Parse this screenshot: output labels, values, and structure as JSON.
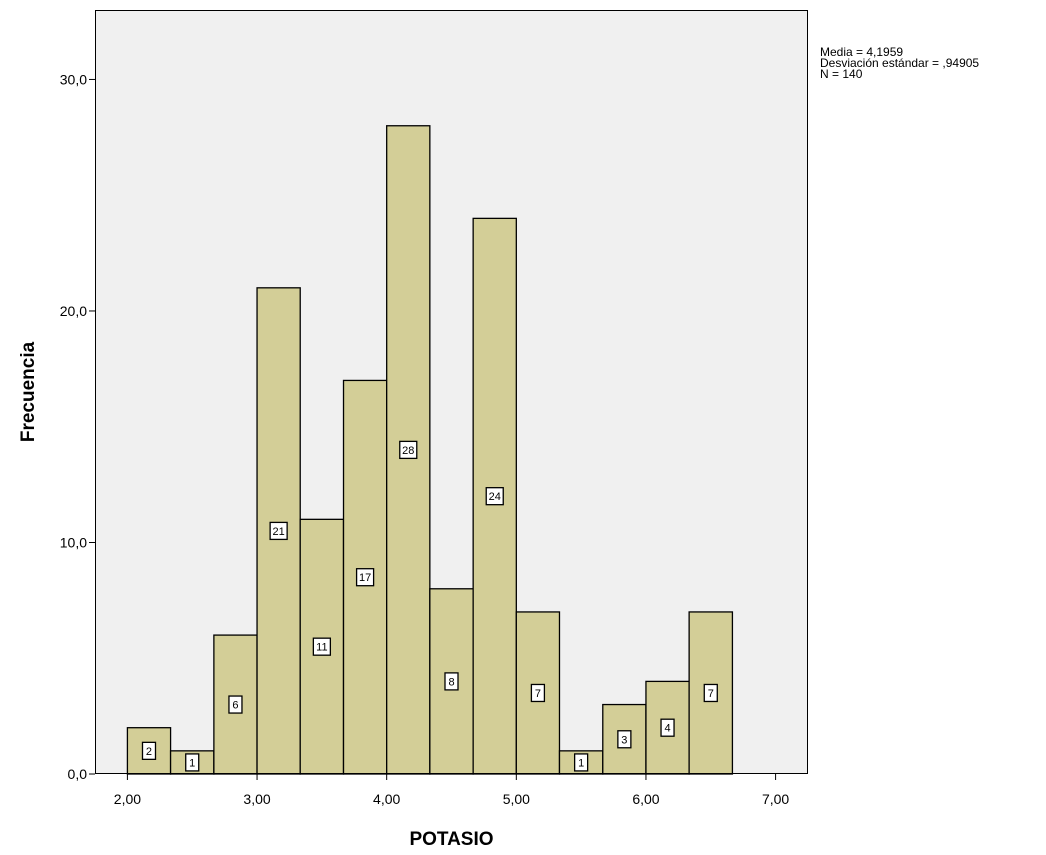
{
  "chart_data": {
    "type": "bar",
    "title": "",
    "xlabel": "POTASIO",
    "ylabel": "Frecuencia",
    "xlim": [
      1.75,
      7.25
    ],
    "ylim": [
      0,
      33
    ],
    "x_ticks": [
      2,
      3,
      4,
      5,
      6,
      7
    ],
    "x_tick_labels": [
      "2,00",
      "3,00",
      "4,00",
      "5,00",
      "6,00",
      "7,00"
    ],
    "y_ticks": [
      0,
      10,
      20,
      30
    ],
    "y_tick_labels": [
      "0,0",
      "10,0",
      "20,0",
      "30,0"
    ],
    "bin_edges": [
      2.0,
      2.333,
      2.667,
      3.0,
      3.333,
      3.667,
      4.0,
      4.333,
      4.667,
      5.0,
      5.333,
      5.667,
      6.0,
      6.333,
      6.667
    ],
    "bins": [
      {
        "start": 2.0,
        "end": 2.333,
        "value": 2,
        "label": "2"
      },
      {
        "start": 2.333,
        "end": 2.667,
        "value": 1,
        "label": "1"
      },
      {
        "start": 2.667,
        "end": 3.0,
        "value": 6,
        "label": "6"
      },
      {
        "start": 3.0,
        "end": 3.333,
        "value": 21,
        "label": "21"
      },
      {
        "start": 3.333,
        "end": 3.667,
        "value": 11,
        "label": "11"
      },
      {
        "start": 3.667,
        "end": 4.0,
        "value": 17,
        "label": "17"
      },
      {
        "start": 4.0,
        "end": 4.333,
        "value": 28,
        "label": "28"
      },
      {
        "start": 4.333,
        "end": 4.667,
        "value": 8,
        "label": "8"
      },
      {
        "start": 4.667,
        "end": 5.0,
        "value": 24,
        "label": "24"
      },
      {
        "start": 5.0,
        "end": 5.333,
        "value": 7,
        "label": "7"
      },
      {
        "start": 5.333,
        "end": 5.667,
        "value": 1,
        "label": "1"
      },
      {
        "start": 5.667,
        "end": 6.0,
        "value": 3,
        "label": "3"
      },
      {
        "start": 6.0,
        "end": 6.333,
        "value": 4,
        "label": "4"
      },
      {
        "start": 6.333,
        "end": 6.667,
        "value": 7,
        "label": "7"
      }
    ],
    "statistics": [
      "Media = 4,1959",
      "Desviación estándar = ,94905",
      "N = 140"
    ],
    "legend_position": "right-top",
    "grid": false
  },
  "colors": {
    "plot_background": "#f0f0f0",
    "bar_fill": "#d3ce97",
    "bar_stroke": "#000000",
    "label_box_fill": "#ffffff",
    "page_background": "#ffffff"
  }
}
